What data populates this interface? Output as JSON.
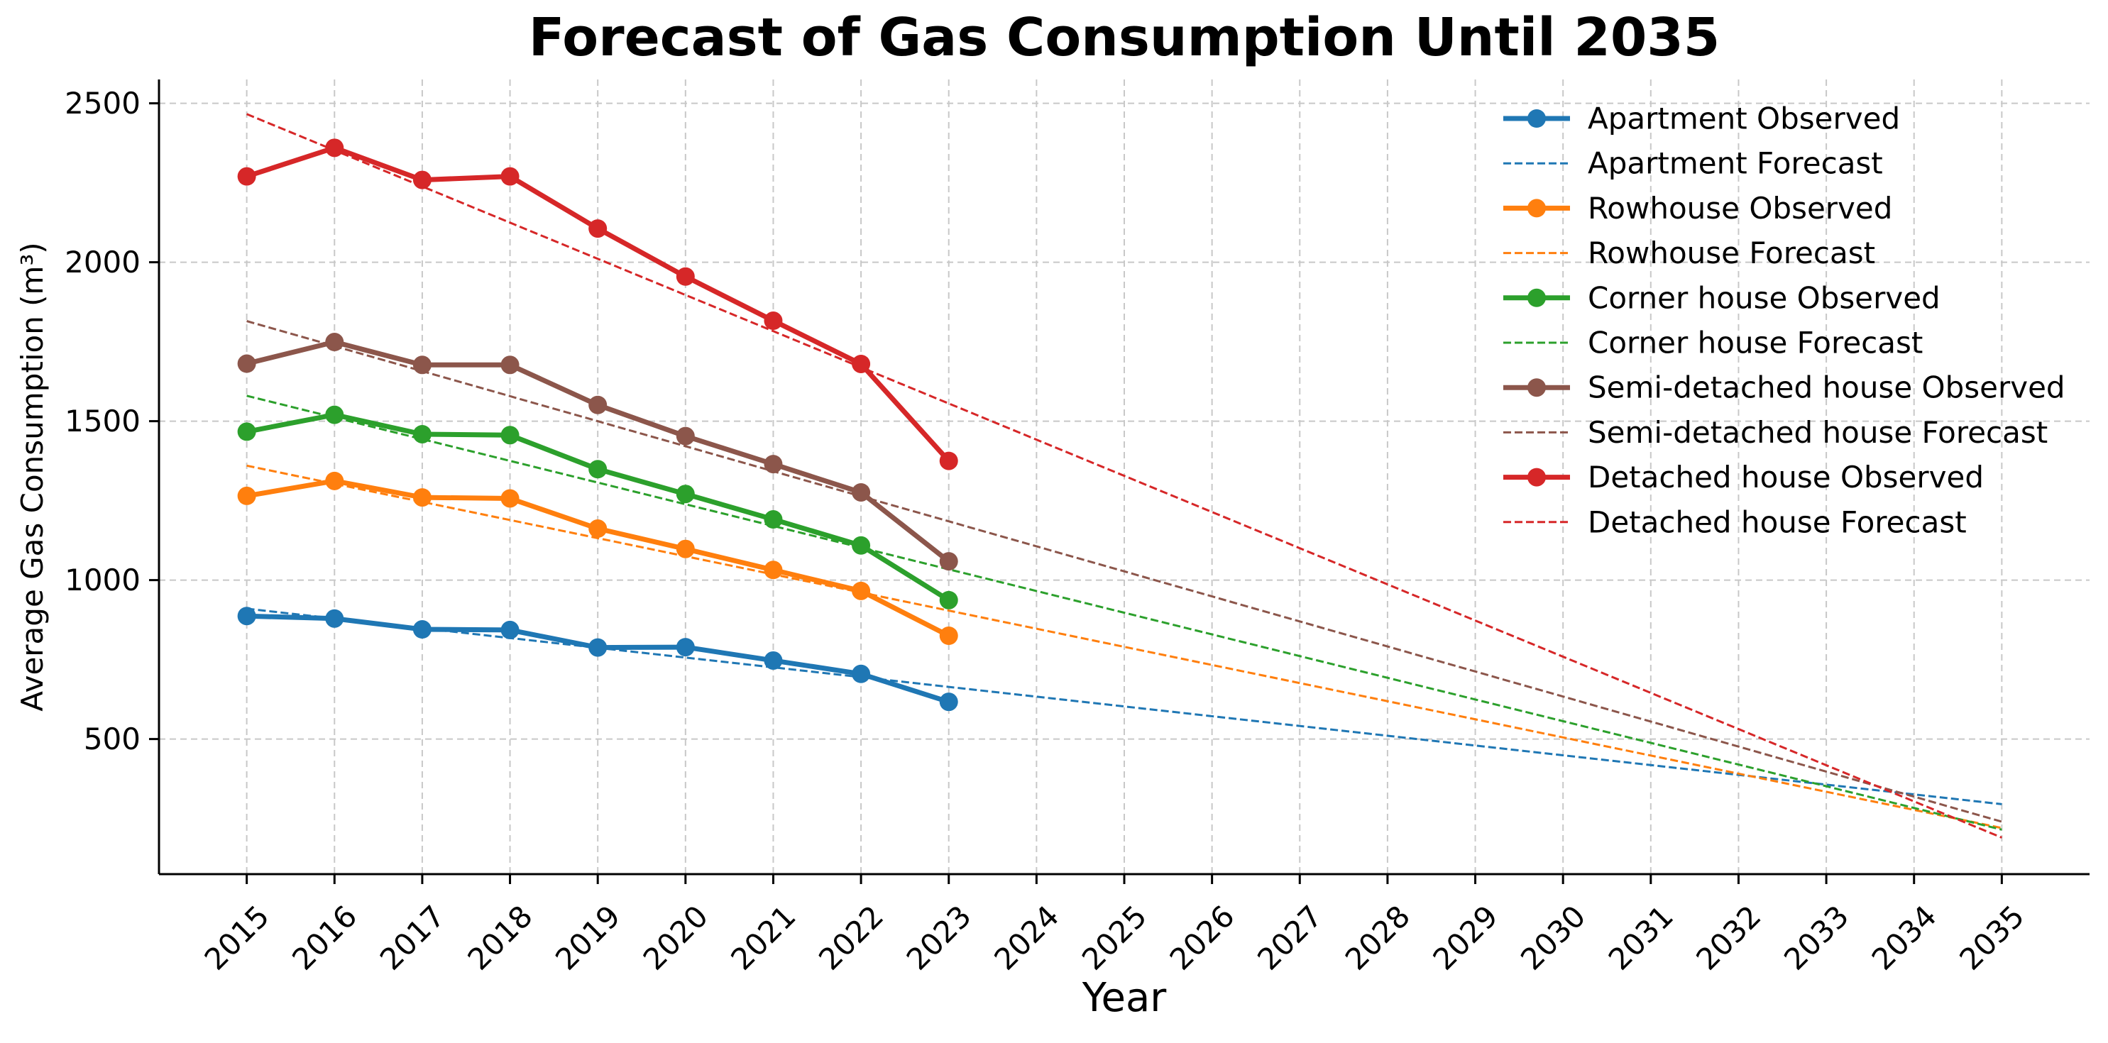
{
  "chart_data": {
    "type": "line",
    "title": "Forecast of Gas Consumption Until 2035",
    "xlabel": "Year",
    "ylabel": "Average Gas Consumption (m³)",
    "xlim": [
      2014,
      2036
    ],
    "ylim": [
      75,
      2575
    ],
    "x_ticks": [
      2015,
      2016,
      2017,
      2018,
      2019,
      2020,
      2021,
      2022,
      2023,
      2024,
      2025,
      2026,
      2027,
      2028,
      2029,
      2030,
      2031,
      2032,
      2033,
      2034,
      2035
    ],
    "y_ticks": [
      500,
      1000,
      1500,
      2000,
      2500
    ],
    "grid": true,
    "legend_position": "top-right",
    "series": [
      {
        "name": "Apartment Observed",
        "style": "solid-marker",
        "color": "#1f77b4",
        "x": [
          2015,
          2016,
          2017,
          2018,
          2019,
          2020,
          2021,
          2022,
          2023
        ],
        "values": [
          887,
          879,
          845,
          843,
          788,
          789,
          747,
          705,
          617
        ]
      },
      {
        "name": "Apartment Forecast",
        "style": "dashed",
        "color": "#1f77b4",
        "x": [
          2015,
          2035
        ],
        "values": [
          910,
          295
        ]
      },
      {
        "name": "Rowhouse Observed",
        "style": "solid-marker",
        "color": "#ff7f0e",
        "x": [
          2015,
          2016,
          2017,
          2018,
          2019,
          2020,
          2021,
          2022,
          2023
        ],
        "values": [
          1265,
          1312,
          1260,
          1257,
          1162,
          1098,
          1032,
          966,
          825
        ]
      },
      {
        "name": "Rowhouse Forecast",
        "style": "dashed",
        "color": "#ff7f0e",
        "x": [
          2015,
          2035
        ],
        "values": [
          1360,
          220
        ]
      },
      {
        "name": "Corner house Observed",
        "style": "solid-marker",
        "color": "#2ca02c",
        "x": [
          2015,
          2016,
          2017,
          2018,
          2019,
          2020,
          2021,
          2022,
          2023
        ],
        "values": [
          1467,
          1520,
          1459,
          1456,
          1349,
          1271,
          1191,
          1109,
          937
        ]
      },
      {
        "name": "Corner house Forecast",
        "style": "dashed",
        "color": "#2ca02c",
        "x": [
          2015,
          2035
        ],
        "values": [
          1580,
          215
        ]
      },
      {
        "name": "Semi-detached house Observed",
        "style": "solid-marker",
        "color": "#8c564b",
        "x": [
          2015,
          2016,
          2017,
          2018,
          2019,
          2020,
          2021,
          2022,
          2023
        ],
        "values": [
          1681,
          1749,
          1677,
          1677,
          1551,
          1453,
          1365,
          1276,
          1059
        ]
      },
      {
        "name": "Semi-detached house Forecast",
        "style": "dashed",
        "color": "#8c564b",
        "x": [
          2015,
          2035
        ],
        "values": [
          1815,
          240
        ]
      },
      {
        "name": "Detached house Observed",
        "style": "solid-marker",
        "color": "#d62728",
        "x": [
          2015,
          2016,
          2017,
          2018,
          2019,
          2020,
          2021,
          2022,
          2023
        ],
        "values": [
          2270,
          2360,
          2259,
          2270,
          2106,
          1955,
          1816,
          1680,
          1375
        ]
      },
      {
        "name": "Detached house Forecast",
        "style": "dashed",
        "color": "#d62728",
        "x": [
          2015,
          2035
        ],
        "values": [
          2466,
          190
        ]
      }
    ]
  }
}
